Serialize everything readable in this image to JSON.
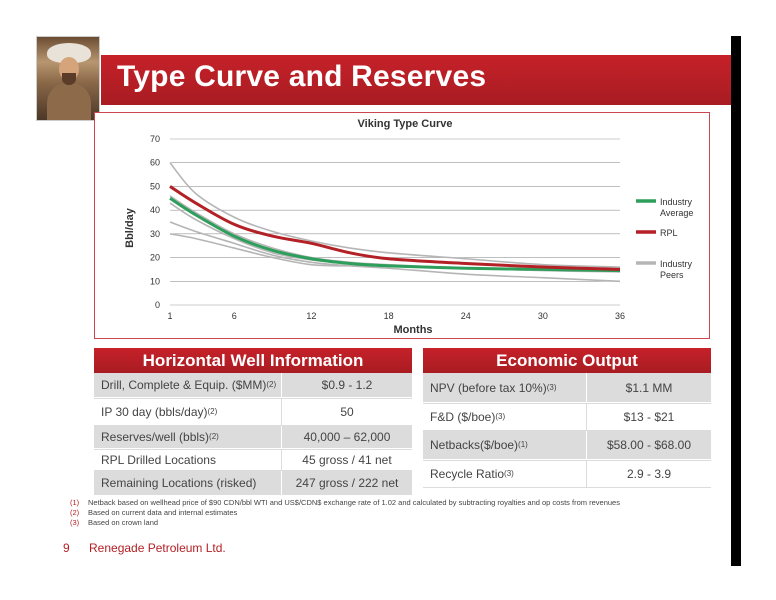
{
  "title": "Type Curve and Reserves",
  "chart_data": {
    "type": "line",
    "title": "Viking Type Curve",
    "xlabel": "Months",
    "ylabel": "Bbl/day",
    "x_ticks": [
      1,
      6,
      12,
      18,
      24,
      30,
      36
    ],
    "y_ticks": [
      0,
      10,
      20,
      30,
      40,
      50,
      60,
      70
    ],
    "xlim": [
      1,
      36
    ],
    "ylim": [
      0,
      70
    ],
    "grid": true,
    "legend_position": "right",
    "series": [
      {
        "name": "Industry Average",
        "color": "#2e9e5b",
        "x": [
          1,
          3,
          6,
          9,
          12,
          15,
          18,
          24,
          30,
          36
        ],
        "y": [
          45,
          38,
          29,
          23,
          19.5,
          17.5,
          16.5,
          15.5,
          15,
          14.5
        ]
      },
      {
        "name": "RPL",
        "color": "#b32025",
        "x": [
          1,
          3,
          6,
          9,
          12,
          15,
          18,
          24,
          30,
          36
        ],
        "y": [
          50,
          43,
          34,
          29,
          26,
          22,
          19.5,
          17.5,
          16,
          15
        ]
      },
      {
        "name": "Industry Peers",
        "color": "#b5b5b5",
        "x": [
          1,
          3,
          6,
          9,
          12,
          15,
          18,
          24,
          30,
          36
        ],
        "y": [
          60,
          47,
          37,
          31,
          27,
          24,
          22,
          19.5,
          17,
          16
        ]
      },
      {
        "name": "",
        "color": "#b5b5b5",
        "x": [
          1,
          3,
          6,
          9,
          12,
          15,
          18,
          24,
          30,
          36
        ],
        "y": [
          46,
          39,
          30,
          24,
          20,
          18,
          17,
          15.5,
          14.5,
          14
        ]
      },
      {
        "name": "",
        "color": "#b5b5b5",
        "x": [
          1,
          3,
          6,
          9,
          12,
          15,
          18,
          24,
          30,
          36
        ],
        "y": [
          43,
          36,
          28,
          22,
          19,
          17.5,
          16.5,
          15.5,
          15,
          14
        ]
      },
      {
        "name": "",
        "color": "#b5b5b5",
        "x": [
          1,
          3,
          6,
          9,
          12,
          15,
          18,
          24,
          30,
          36
        ],
        "y": [
          35,
          31,
          26,
          21,
          18,
          16.5,
          15.5,
          13,
          11.5,
          10
        ]
      },
      {
        "name": "",
        "color": "#b5b5b5",
        "x": [
          1,
          3,
          6,
          9,
          12,
          15,
          18,
          24,
          30,
          36
        ],
        "y": [
          30,
          28,
          24,
          20,
          17,
          16.5,
          16.5,
          15.5,
          15,
          14.5
        ]
      }
    ],
    "legend": [
      {
        "label_lines": [
          "Industry",
          "Average"
        ],
        "color": "#2e9e5b"
      },
      {
        "label_lines": [
          "RPL"
        ],
        "color": "#b32025"
      },
      {
        "label_lines": [
          "Industry",
          "Peers"
        ],
        "color": "#b5b5b5"
      }
    ]
  },
  "well_info": {
    "heading": "Horizontal Well Information",
    "rows": [
      {
        "label": "Drill, Complete & Equip. ($MM)",
        "note": "(2)",
        "value": "$0.9 - 1.2"
      },
      {
        "label": "IP 30 day (bbls/day)",
        "note": "(2)",
        "value": "50"
      },
      {
        "label": "Reserves/well (bbls)",
        "note": "(2)",
        "value": "40,000 – 62,000"
      },
      {
        "label": "RPL Drilled Locations",
        "note": "",
        "value": "45 gross / 41 net"
      },
      {
        "label": "Remaining Locations (risked)",
        "note": "",
        "value": "247 gross / 222 net"
      }
    ]
  },
  "economic": {
    "heading": "Economic Output",
    "rows": [
      {
        "label": "NPV (before tax 10%)",
        "note": "(3)",
        "value": "$1.1 MM"
      },
      {
        "label": "F&D ($/boe)",
        "note": "(3)",
        "value": "$13 - $21"
      },
      {
        "label": "Netbacks($/boe)",
        "note": "(1)",
        "value": "$58.00 - $68.00"
      },
      {
        "label": "Recycle Ratio",
        "note": "(3)",
        "value": "2.9 - 3.9"
      }
    ]
  },
  "footnotes": [
    {
      "num": "(1)",
      "text": "Netback based on wellhead price of $90 CDN/bbl WTI and US$/CDN$ exchange rate of 1.02 and calculated by subtracting royalties and op costs from revenues"
    },
    {
      "num": "(2)",
      "text": "Based on current data and internal estimates"
    },
    {
      "num": "(3)",
      "text": "Based on crown land"
    }
  ],
  "page_number": "9",
  "company": "Renegade Petroleum Ltd."
}
